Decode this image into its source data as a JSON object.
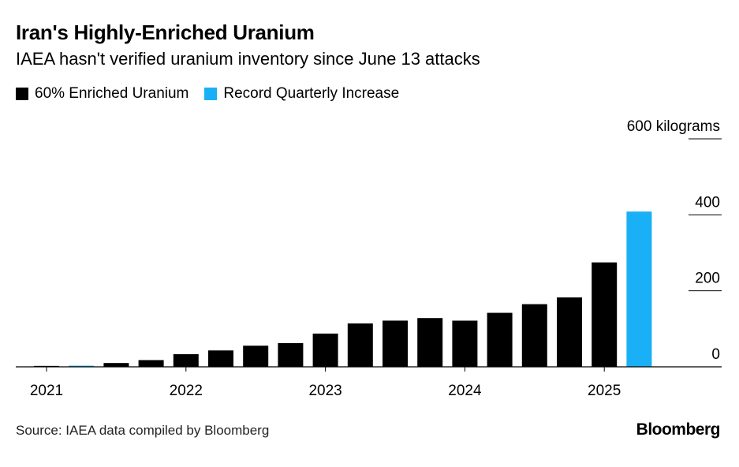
{
  "title": "Iran's Highly-Enriched Uranium",
  "subtitle": "IAEA hasn't verified uranium inventory since June 13 attacks",
  "legend": [
    {
      "label": "60% Enriched Uranium",
      "color": "#000000"
    },
    {
      "label": "Record Quarterly Increase",
      "color": "#1ab0f5"
    }
  ],
  "source": "Source: IAEA data compiled by Bloomberg",
  "brand": "Bloomberg",
  "chart_data": {
    "type": "bar",
    "title": "Iran's Highly-Enriched Uranium",
    "ylabel": "kilograms",
    "ylim": [
      0,
      600
    ],
    "yticks": [
      0,
      200,
      400,
      600
    ],
    "ytick_labels": [
      "0",
      "200",
      "400",
      "600 kilograms"
    ],
    "xtick_labels": [
      "2021",
      "2022",
      "2023",
      "2024",
      "2025"
    ],
    "series": [
      {
        "name": "60% Enriched Uranium",
        "color": "#000000",
        "values": [
          2.4,
          0,
          10,
          17.7,
          33.2,
          43.1,
          55.6,
          62.3,
          87.5,
          114.1,
          121.6,
          128.3,
          121.5,
          142.1,
          164.9,
          182.6,
          274.8,
          0
        ]
      },
      {
        "name": "Record Quarterly Increase",
        "color": "#1ab0f5",
        "values": [
          0,
          3,
          0,
          0,
          0,
          0,
          0,
          0,
          0,
          0,
          0,
          0,
          0,
          0,
          0,
          0,
          0,
          408.6
        ]
      }
    ]
  }
}
